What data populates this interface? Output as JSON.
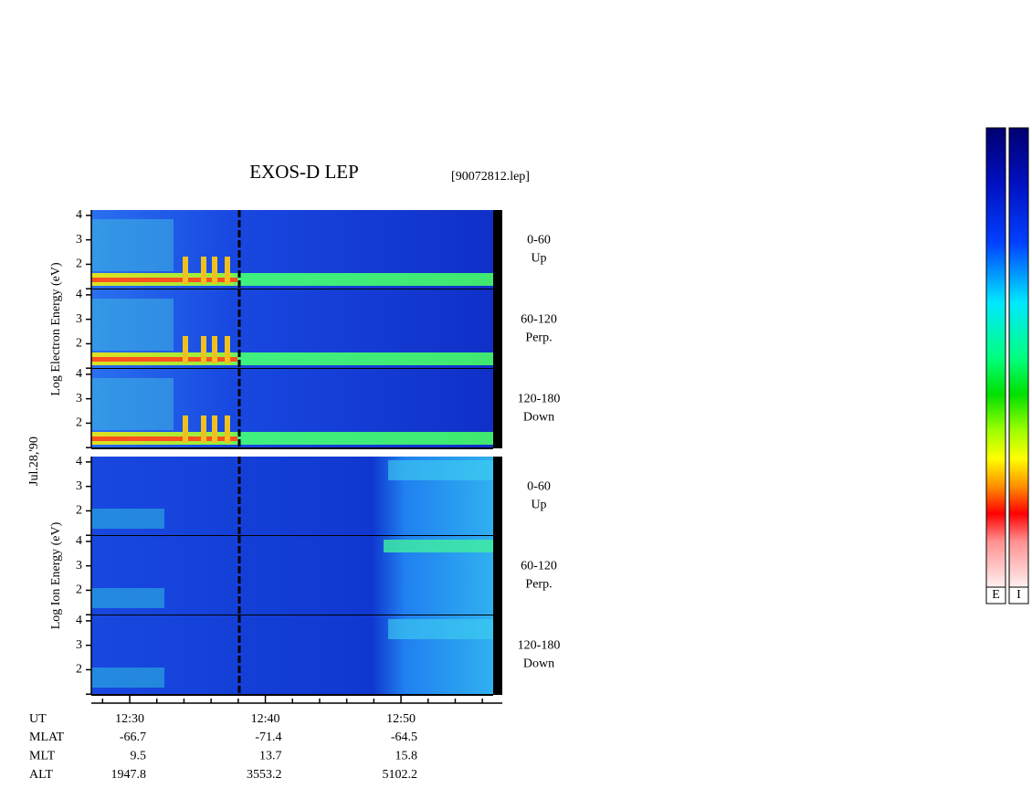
{
  "chart_data": {
    "type": "spectrogram",
    "title": "EXOS-D LEP",
    "file_label": "[90072812.lep]",
    "date_label": "Jul.28,'90",
    "groups": [
      {
        "y_label": "Log  Electron  Energy (eV)",
        "panels": [
          [
            "0-60",
            "Up"
          ],
          [
            "60-120",
            "Perp."
          ],
          [
            "120-180",
            "Down"
          ]
        ]
      },
      {
        "y_label": "Log  Ion  Energy (eV)",
        "panels": [
          [
            "0-60",
            "Up"
          ],
          [
            "60-120",
            "Perp."
          ],
          [
            "120-180",
            "Down"
          ]
        ]
      }
    ],
    "ylim": [
      0.97,
      4.22
    ],
    "yticks": [
      2,
      3,
      4
    ],
    "yminor_ticks": [
      1
    ],
    "x_label": "UT",
    "xlim": [
      747.17,
      777.47
    ],
    "xticks": [
      {
        "value": 750,
        "label": "12:30"
      },
      {
        "value": 760,
        "label": "12:40"
      },
      {
        "value": 770,
        "label": "12:50"
      }
    ],
    "xminor_ticks": [
      748,
      752,
      754,
      756,
      758,
      762,
      764,
      766,
      768,
      772,
      774,
      776
    ],
    "ephemeris": [
      {
        "name": "MLAT",
        "values": [
          -66.7,
          -71.4,
          -64.5
        ]
      },
      {
        "name": "MLT",
        "values": [
          9.5,
          13.7,
          15.8
        ]
      },
      {
        "name": "ALT",
        "values": [
          1947.8,
          3553.2,
          5102.2
        ]
      }
    ],
    "colorbar_labels": [
      "E",
      "I"
    ]
  }
}
